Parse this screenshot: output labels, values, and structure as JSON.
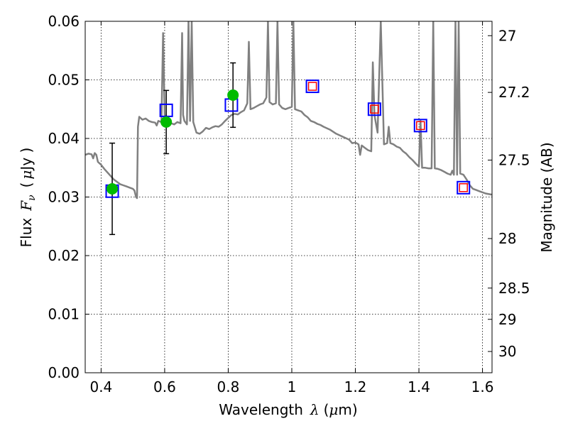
{
  "chart_data": {
    "type": "scatter",
    "xlabel_prefix": "Wavelength",
    "xlabel_symbol": "λ",
    "xlabel_unit_open": "(",
    "xlabel_unit_mu": "μ",
    "xlabel_unit_close": "m)",
    "ylabel_prefix": "Flux",
    "ylabel_symbol": "F",
    "ylabel_sub": "ν",
    "ylabel_unit_open": "(",
    "ylabel_unit_mu": "μ",
    "ylabel_unit_close": "Jy )",
    "y2label": "Magnitude (AB)",
    "xlim": [
      0.35,
      1.63
    ],
    "ylim": [
      0.0,
      0.06
    ],
    "grid": true,
    "x_ticks": [
      {
        "v": 0.4,
        "label": "0.4"
      },
      {
        "v": 0.6,
        "label": "0.6"
      },
      {
        "v": 0.8,
        "label": "0.8"
      },
      {
        "v": 1.0,
        "label": "1"
      },
      {
        "v": 1.2,
        "label": "1.2"
      },
      {
        "v": 1.4,
        "label": "1.4"
      },
      {
        "v": 1.6,
        "label": "1.6"
      }
    ],
    "y_ticks": [
      {
        "v": 0.0,
        "label": "0.00"
      },
      {
        "v": 0.01,
        "label": "0.01"
      },
      {
        "v": 0.02,
        "label": "0.02"
      },
      {
        "v": 0.03,
        "label": "0.03"
      },
      {
        "v": 0.04,
        "label": "0.04"
      },
      {
        "v": 0.05,
        "label": "0.05"
      },
      {
        "v": 0.06,
        "label": "0.06"
      }
    ],
    "y2_ticks": [
      {
        "mag": 27,
        "label": "27"
      },
      {
        "mag": 27.2,
        "label": "27.2"
      },
      {
        "mag": 27.5,
        "label": "27.5"
      },
      {
        "mag": 28,
        "label": "28"
      },
      {
        "mag": 28.5,
        "label": "28.5"
      },
      {
        "mag": 29,
        "label": "29"
      },
      {
        "mag": 30,
        "label": "30"
      }
    ],
    "model_spectrum": {
      "color": "#808080",
      "points": [
        [
          0.35,
          0.0372
        ],
        [
          0.36,
          0.0374
        ],
        [
          0.37,
          0.0373
        ],
        [
          0.375,
          0.0366
        ],
        [
          0.38,
          0.0375
        ],
        [
          0.385,
          0.0372
        ],
        [
          0.39,
          0.036
        ],
        [
          0.4,
          0.0355
        ],
        [
          0.41,
          0.0348
        ],
        [
          0.42,
          0.0342
        ],
        [
          0.43,
          0.0336
        ],
        [
          0.44,
          0.033
        ],
        [
          0.45,
          0.0326
        ],
        [
          0.46,
          0.0322
        ],
        [
          0.47,
          0.032
        ],
        [
          0.48,
          0.0318
        ],
        [
          0.49,
          0.0316
        ],
        [
          0.5,
          0.0314
        ],
        [
          0.505,
          0.0311
        ],
        [
          0.51,
          0.03
        ],
        [
          0.513,
          0.0298
        ],
        [
          0.516,
          0.042
        ],
        [
          0.52,
          0.0437
        ],
        [
          0.53,
          0.0432
        ],
        [
          0.54,
          0.0434
        ],
        [
          0.55,
          0.043
        ],
        [
          0.56,
          0.0428
        ],
        [
          0.57,
          0.0427
        ],
        [
          0.575,
          0.0422
        ],
        [
          0.58,
          0.043
        ],
        [
          0.59,
          0.0428
        ],
        [
          0.595,
          0.058
        ],
        [
          0.6,
          0.044
        ],
        [
          0.605,
          0.0438
        ],
        [
          0.61,
          0.0425
        ],
        [
          0.62,
          0.0426
        ],
        [
          0.63,
          0.0424
        ],
        [
          0.64,
          0.0428
        ],
        [
          0.65,
          0.0426
        ],
        [
          0.655,
          0.058
        ],
        [
          0.658,
          0.044
        ],
        [
          0.662,
          0.043
        ],
        [
          0.67,
          0.0424
        ],
        [
          0.675,
          0.06
        ],
        [
          0.68,
          0.043
        ],
        [
          0.685,
          0.06
        ],
        [
          0.69,
          0.0428
        ],
        [
          0.7,
          0.041
        ],
        [
          0.71,
          0.0408
        ],
        [
          0.72,
          0.0412
        ],
        [
          0.73,
          0.0418
        ],
        [
          0.74,
          0.0416
        ],
        [
          0.75,
          0.0419
        ],
        [
          0.76,
          0.0421
        ],
        [
          0.77,
          0.042
        ],
        [
          0.78,
          0.0424
        ],
        [
          0.79,
          0.043
        ],
        [
          0.8,
          0.0435
        ],
        [
          0.81,
          0.044
        ],
        [
          0.82,
          0.0442
        ],
        [
          0.83,
          0.0441
        ],
        [
          0.84,
          0.0445
        ],
        [
          0.85,
          0.0448
        ],
        [
          0.86,
          0.046
        ],
        [
          0.865,
          0.0565
        ],
        [
          0.87,
          0.045
        ],
        [
          0.88,
          0.0452
        ],
        [
          0.89,
          0.0455
        ],
        [
          0.9,
          0.0458
        ],
        [
          0.91,
          0.046
        ],
        [
          0.92,
          0.047
        ],
        [
          0.925,
          0.06
        ],
        [
          0.93,
          0.0462
        ],
        [
          0.94,
          0.0458
        ],
        [
          0.95,
          0.046
        ],
        [
          0.955,
          0.06
        ],
        [
          0.96,
          0.0458
        ],
        [
          0.97,
          0.0452
        ],
        [
          0.98,
          0.045
        ],
        [
          0.99,
          0.0452
        ],
        [
          1.0,
          0.0454
        ],
        [
          1.005,
          0.06
        ],
        [
          1.01,
          0.045
        ],
        [
          1.02,
          0.0448
        ],
        [
          1.03,
          0.0446
        ],
        [
          1.04,
          0.044
        ],
        [
          1.05,
          0.0436
        ],
        [
          1.06,
          0.043
        ],
        [
          1.07,
          0.0428
        ],
        [
          1.08,
          0.0425
        ],
        [
          1.09,
          0.0423
        ],
        [
          1.1,
          0.042
        ],
        [
          1.12,
          0.0415
        ],
        [
          1.14,
          0.0408
        ],
        [
          1.16,
          0.0403
        ],
        [
          1.18,
          0.0398
        ],
        [
          1.19,
          0.0392
        ],
        [
          1.2,
          0.0393
        ],
        [
          1.21,
          0.039
        ],
        [
          1.215,
          0.0372
        ],
        [
          1.22,
          0.0388
        ],
        [
          1.23,
          0.0384
        ],
        [
          1.24,
          0.038
        ],
        [
          1.25,
          0.0378
        ],
        [
          1.255,
          0.053
        ],
        [
          1.26,
          0.044
        ],
        [
          1.27,
          0.041
        ],
        [
          1.28,
          0.06
        ],
        [
          1.29,
          0.039
        ],
        [
          1.3,
          0.0392
        ],
        [
          1.305,
          0.042
        ],
        [
          1.31,
          0.0392
        ],
        [
          1.32,
          0.039
        ],
        [
          1.33,
          0.0386
        ],
        [
          1.34,
          0.0384
        ],
        [
          1.35,
          0.0378
        ],
        [
          1.36,
          0.0374
        ],
        [
          1.37,
          0.0368
        ],
        [
          1.38,
          0.0363
        ],
        [
          1.39,
          0.0357
        ],
        [
          1.4,
          0.0352
        ],
        [
          1.405,
          0.043
        ],
        [
          1.41,
          0.035
        ],
        [
          1.42,
          0.035
        ],
        [
          1.43,
          0.0349
        ],
        [
          1.44,
          0.0349
        ],
        [
          1.445,
          0.06
        ],
        [
          1.45,
          0.0349
        ],
        [
          1.46,
          0.0348
        ],
        [
          1.47,
          0.0346
        ],
        [
          1.48,
          0.0343
        ],
        [
          1.49,
          0.034
        ],
        [
          1.5,
          0.0338
        ],
        [
          1.505,
          0.0345
        ],
        [
          1.51,
          0.0338
        ],
        [
          1.515,
          0.06
        ],
        [
          1.52,
          0.0338
        ],
        [
          1.525,
          0.06
        ],
        [
          1.53,
          0.034
        ],
        [
          1.54,
          0.0338
        ],
        [
          1.55,
          0.033
        ],
        [
          1.56,
          0.032
        ],
        [
          1.57,
          0.0314
        ],
        [
          1.58,
          0.0312
        ],
        [
          1.59,
          0.031
        ],
        [
          1.6,
          0.0308
        ],
        [
          1.61,
          0.0306
        ],
        [
          1.62,
          0.0305
        ],
        [
          1.63,
          0.0304
        ]
      ]
    },
    "observed": {
      "color": "#00bb00",
      "points": [
        {
          "x": 0.435,
          "y": 0.0314,
          "yerr": 0.0078
        },
        {
          "x": 0.605,
          "y": 0.0428,
          "yerr": 0.0054
        },
        {
          "x": 0.815,
          "y": 0.0474,
          "yerr": 0.0055
        }
      ]
    },
    "model_photometry": {
      "color": "#0000ff",
      "points": [
        {
          "x": 0.435,
          "y": 0.031
        },
        {
          "x": 0.605,
          "y": 0.0448
        },
        {
          "x": 0.81,
          "y": 0.0457
        },
        {
          "x": 1.065,
          "y": 0.0489
        },
        {
          "x": 1.26,
          "y": 0.045
        },
        {
          "x": 1.405,
          "y": 0.0422
        },
        {
          "x": 1.54,
          "y": 0.0316
        }
      ]
    },
    "predicted": {
      "color": "#ff0000",
      "points": [
        {
          "x": 1.065,
          "y": 0.0489
        },
        {
          "x": 1.26,
          "y": 0.045
        },
        {
          "x": 1.405,
          "y": 0.0422
        },
        {
          "x": 1.54,
          "y": 0.0316
        }
      ]
    }
  }
}
